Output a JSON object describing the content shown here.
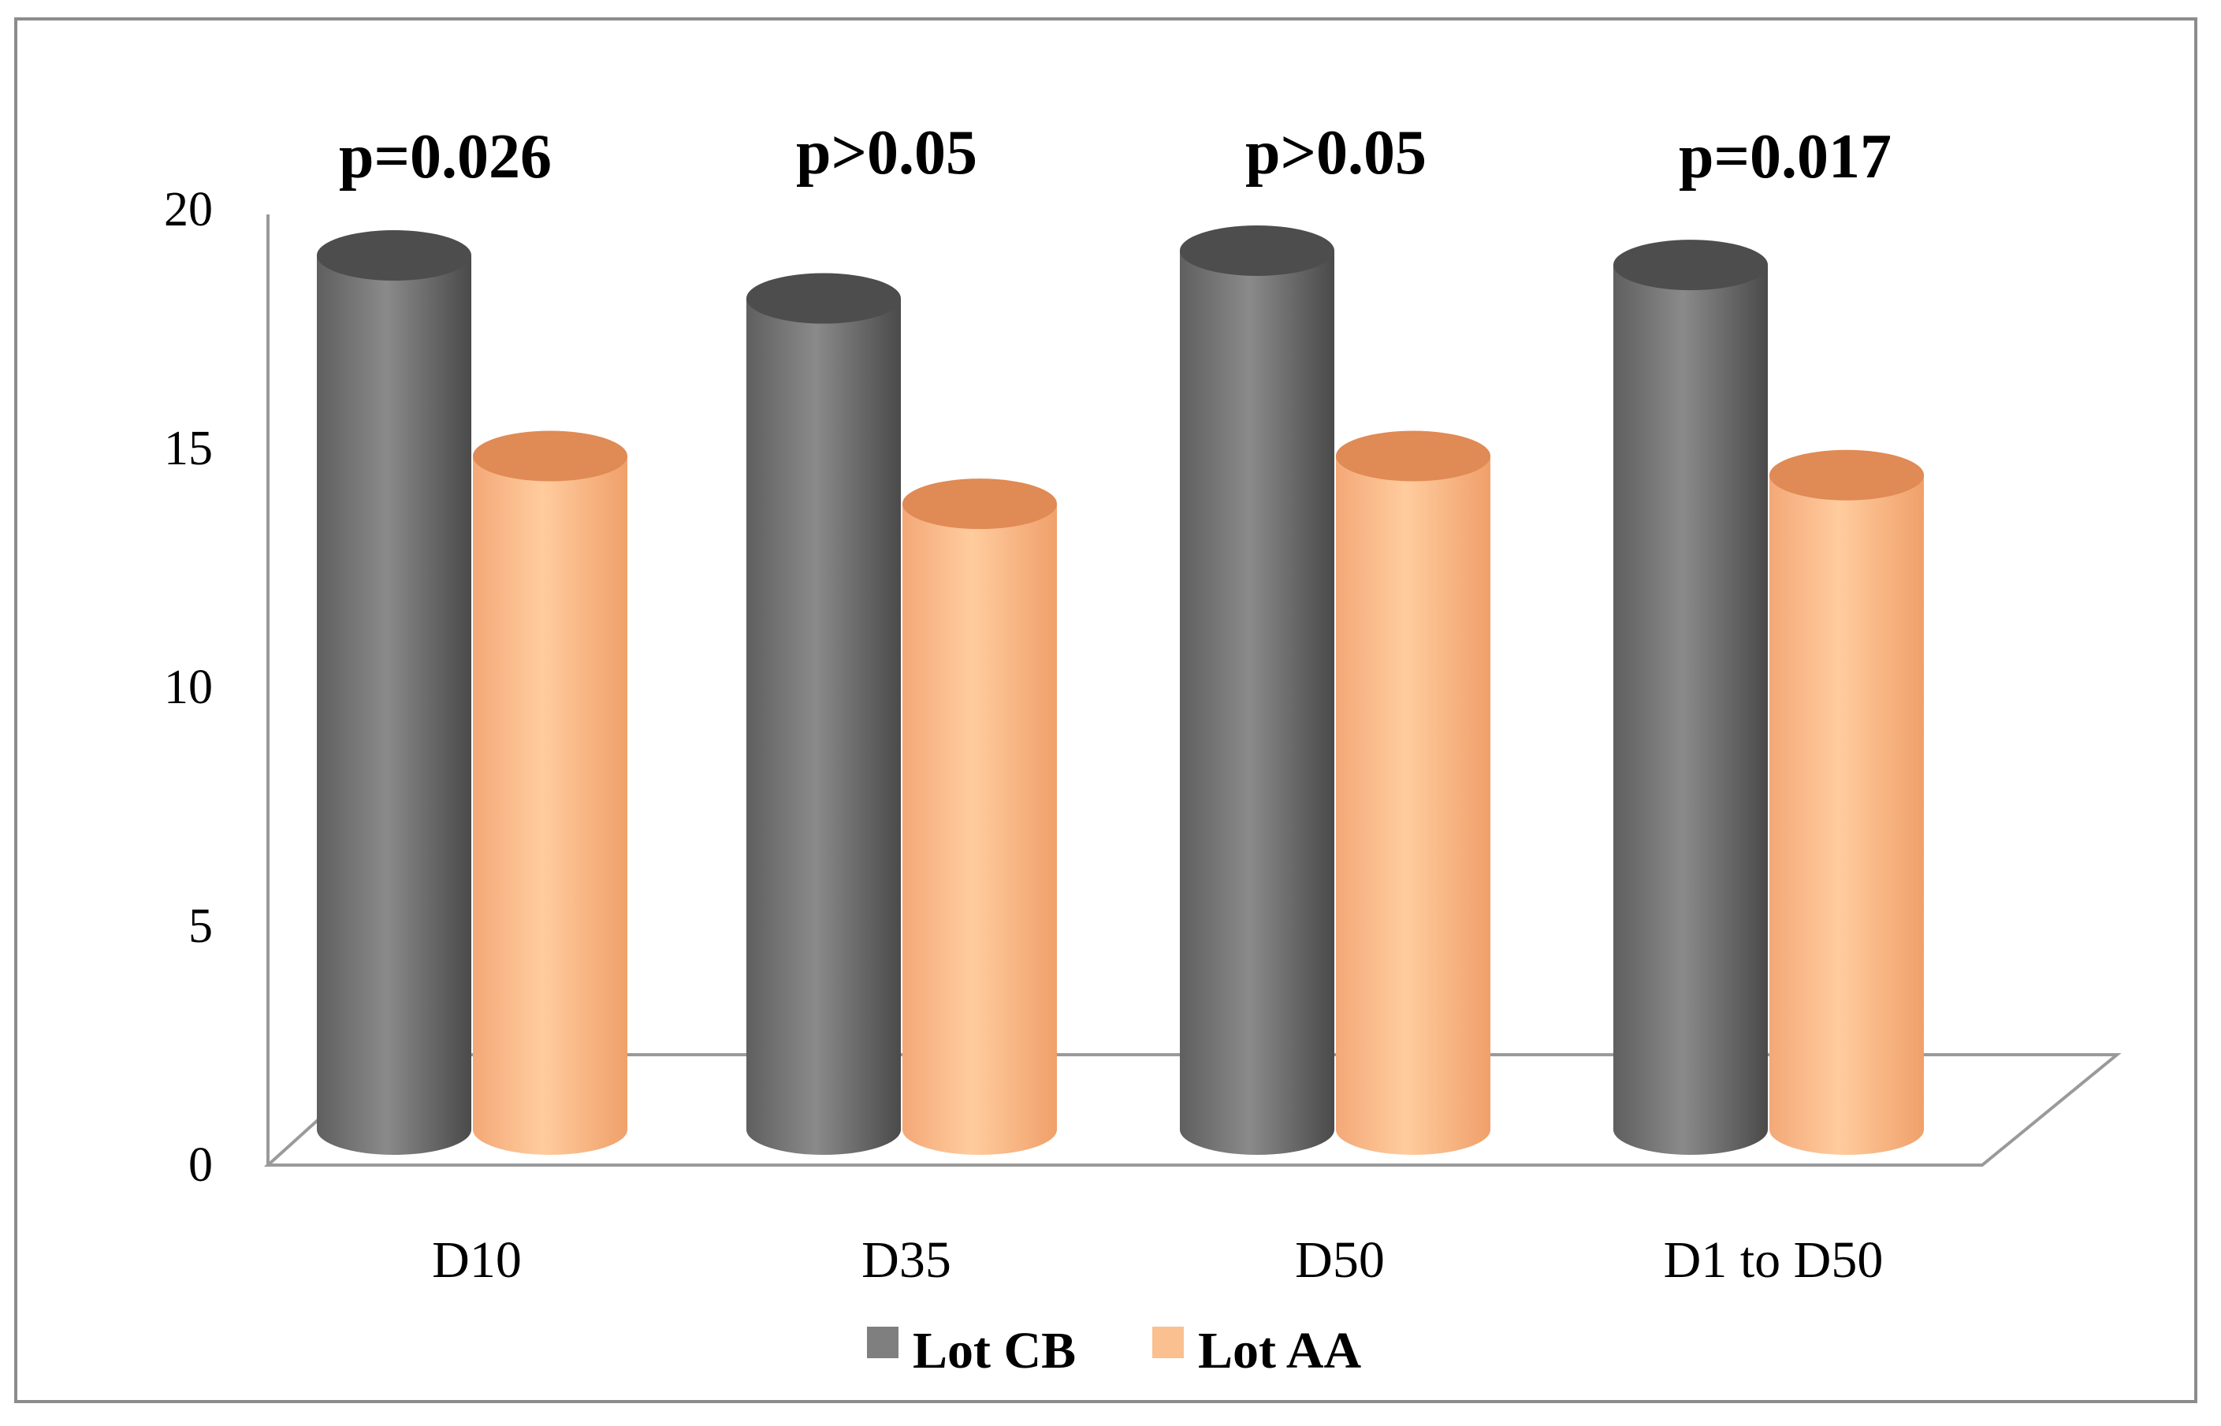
{
  "chart_data": {
    "type": "bar",
    "style": "3d-cylinder",
    "categories": [
      "D10",
      "D35",
      "D50",
      "D1 to D50"
    ],
    "series": [
      {
        "name": "Lot CB",
        "color": "#7f7f7f",
        "values": [
          18.3,
          17.4,
          18.4,
          18.1
        ]
      },
      {
        "name": "Lot AA",
        "color": "#fac090",
        "values": [
          14.1,
          13.1,
          14.1,
          13.7
        ]
      }
    ],
    "yticks": [
      "0",
      "5",
      "10",
      "15",
      "20"
    ],
    "ylim": [
      0,
      20
    ],
    "annotations": [
      "p=0.026",
      "p>0.05",
      "p>0.05",
      "p=0.017"
    ],
    "legend_position": "bottom"
  }
}
